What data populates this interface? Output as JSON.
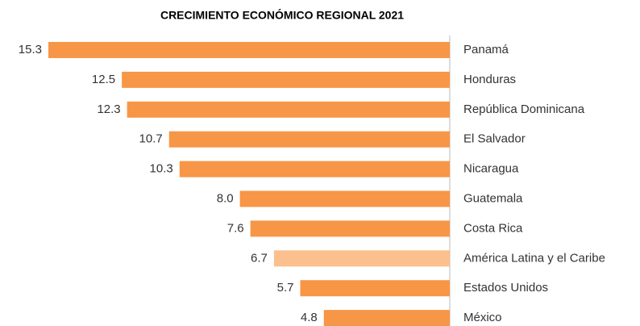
{
  "chart_data": {
    "type": "barh",
    "title": "CRECIMIENTO ECONÓMICO REGIONAL 2021",
    "categories": [
      "Panamá",
      "Honduras",
      "República Dominicana",
      "El Salvador",
      "Nicaragua",
      "Guatemala",
      "Costa Rica",
      "América Latina y el Caribe",
      "Estados Unidos",
      "México"
    ],
    "values": [
      15.3,
      12.5,
      12.3,
      10.7,
      10.3,
      8.0,
      7.6,
      6.7,
      5.7,
      4.8
    ],
    "value_labels": [
      "15.3",
      "12.5",
      "12.3",
      "10.7",
      "10.3",
      "8.0",
      "7.6",
      "6.7",
      "5.7",
      "4.8"
    ],
    "colors": [
      "#f79646",
      "#f79646",
      "#f79646",
      "#f79646",
      "#f79646",
      "#f79646",
      "#f79646",
      "#fbc08d",
      "#f79646",
      "#f79646"
    ]
  }
}
